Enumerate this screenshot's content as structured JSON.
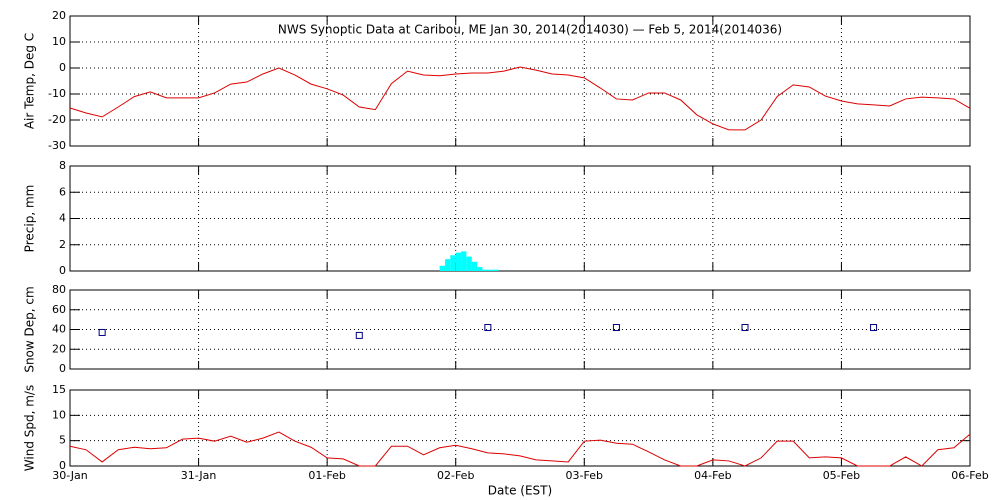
{
  "chart_data": [
    {
      "type": "line",
      "title": "NWS Synoptic Data at Caribou, ME   Jan 30, 2014(2014030) — Feb  5, 2014(2014036)",
      "ylabel": "Air Temp, Deg C",
      "xlim": [
        0,
        7
      ],
      "ylim": [
        -30,
        20
      ],
      "yticks": [
        -30,
        -20,
        -10,
        0,
        10,
        20
      ],
      "grid": true,
      "series": [
        {
          "color": "#dd0000",
          "x": [
            0,
            0.125,
            0.25,
            0.375,
            0.5,
            0.625,
            0.75,
            0.875,
            1,
            1.125,
            1.25,
            1.375,
            1.5,
            1.625,
            1.75,
            1.875,
            2,
            2.125,
            2.25,
            2.375,
            2.5,
            2.625,
            2.75,
            2.875,
            3,
            3.125,
            3.25,
            3.375,
            3.5,
            3.625,
            3.75,
            3.875,
            4,
            4.125,
            4.25,
            4.375,
            4.5,
            4.625,
            4.75,
            4.875,
            5,
            5.125,
            5.25,
            5.375,
            5.5,
            5.625,
            5.75,
            5.875,
            6,
            6.125,
            6.25,
            6.375,
            6.5,
            6.625,
            6.75,
            6.875,
            7
          ],
          "values": [
            -15.4,
            -17.3,
            -18.8,
            -15,
            -11,
            -9.2,
            -11.5,
            -11.5,
            -11.5,
            -9.6,
            -6.2,
            -5.4,
            -2.3,
            0,
            -2.7,
            -6.2,
            -8,
            -10.4,
            -15,
            -16,
            -6,
            -1.2,
            -2.7,
            -3,
            -2.3,
            -1.9,
            -1.9,
            -1.2,
            0.4,
            -0.8,
            -2.3,
            -2.7,
            -3.8,
            -7.7,
            -11.9,
            -12.3,
            -9.6,
            -9.6,
            -12.3,
            -18,
            -21.5,
            -23.8,
            -23.8,
            -20,
            -11,
            -6.5,
            -7.3,
            -10.8,
            -12.7,
            -13.8,
            -14.2,
            -14.6,
            -11.9,
            -11.2,
            -11.5,
            -11.9,
            -15.5
          ]
        }
      ]
    },
    {
      "type": "histogram",
      "ylabel": "Precip, mm",
      "xlim": [
        0,
        7
      ],
      "ylim": [
        0,
        8
      ],
      "yticks": [
        0,
        2,
        4,
        6,
        8
      ],
      "grid": true,
      "color": "#00ffff",
      "bins": [
        2.875,
        2.917,
        2.958,
        3.0,
        3.042,
        3.083,
        3.125,
        3.167,
        3.208,
        3.25,
        3.292,
        3.333
      ],
      "counts": [
        0.4,
        0.9,
        1.2,
        1.4,
        1.5,
        1.1,
        0.7,
        0.3,
        0.1,
        0.1,
        0.1
      ]
    },
    {
      "type": "scatter",
      "ylabel": "Snow Dep, cm",
      "xlim": [
        0,
        7
      ],
      "ylim": [
        0,
        80
      ],
      "yticks": [
        0,
        20,
        40,
        60,
        80
      ],
      "grid": true,
      "color": "#000080",
      "x": [
        0.25,
        2.25,
        3.25,
        4.25,
        5.25,
        6.25
      ],
      "values": [
        37,
        34,
        42,
        42,
        42,
        42
      ]
    },
    {
      "type": "line",
      "ylabel": "Wind Spd, m/s",
      "xlabel": "Date (EST)",
      "xlim": [
        0,
        7
      ],
      "ylim": [
        0,
        15
      ],
      "yticks": [
        0,
        5,
        10,
        15
      ],
      "grid": true,
      "xticks": [
        {
          "value": 0,
          "label": "30-Jan"
        },
        {
          "value": 1,
          "label": "31-Jan"
        },
        {
          "value": 2,
          "label": "01-Feb"
        },
        {
          "value": 3,
          "label": "02-Feb"
        },
        {
          "value": 4,
          "label": "03-Feb"
        },
        {
          "value": 5,
          "label": "04-Feb"
        },
        {
          "value": 6,
          "label": "05-Feb"
        },
        {
          "value": 7,
          "label": "06-Feb"
        }
      ],
      "series": [
        {
          "color": "#dd0000",
          "x": [
            0,
            0.125,
            0.25,
            0.375,
            0.5,
            0.625,
            0.75,
            0.875,
            1,
            1.125,
            1.25,
            1.375,
            1.5,
            1.625,
            1.75,
            1.875,
            2,
            2.125,
            2.25,
            2.375,
            2.5,
            2.625,
            2.75,
            2.875,
            3,
            3.125,
            3.25,
            3.375,
            3.5,
            3.625,
            3.75,
            3.875,
            4,
            4.125,
            4.25,
            4.375,
            4.5,
            4.625,
            4.75,
            4.875,
            5,
            5.125,
            5.25,
            5.375,
            5.5,
            5.625,
            5.75,
            5.875,
            6,
            6.125,
            6.25,
            6.375,
            6.5,
            6.625,
            6.75,
            6.875,
            7
          ],
          "values": [
            3.9,
            3.2,
            0.8,
            3.2,
            3.7,
            3.4,
            3.6,
            5.3,
            5.5,
            4.9,
            5.9,
            4.7,
            5.5,
            6.7,
            4.9,
            3.7,
            1.6,
            1.4,
            0,
            0,
            3.9,
            3.9,
            2.2,
            3.6,
            4.1,
            3.4,
            2.6,
            2.4,
            2,
            1.2,
            1,
            0.8,
            4.9,
            5.1,
            4.5,
            4.3,
            2.8,
            1.2,
            0,
            0,
            1.2,
            1,
            0,
            1.6,
            4.9,
            4.9,
            1.6,
            1.8,
            1.6,
            0,
            0,
            0,
            1.8,
            0,
            3.2,
            3.6,
            6.3
          ]
        }
      ]
    }
  ]
}
